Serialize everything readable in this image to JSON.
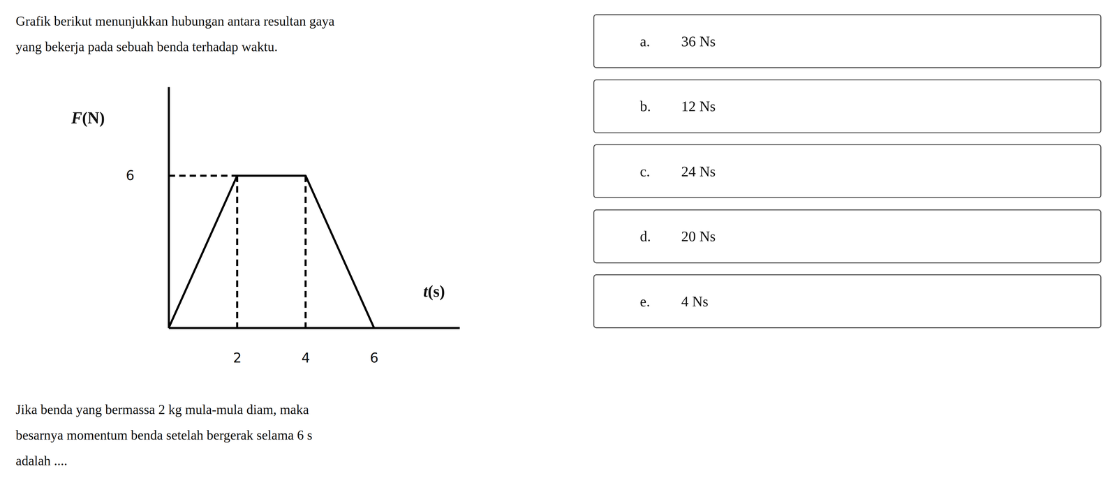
{
  "question": {
    "intro": [
      "Grafik berikut menunjukkan hubungan antara resultan gaya",
      "yang bekerja pada sebuah benda terhadap waktu."
    ],
    "prompt": [
      "Jika benda yang bermassa 2 kg mula-mula diam, maka",
      "besarnya momentum benda setelah bergerak selama 6 s",
      "adalah ...."
    ]
  },
  "options": [
    {
      "letter": "a.",
      "text": "36 Ns"
    },
    {
      "letter": "b.",
      "text": "12 Ns"
    },
    {
      "letter": "c.",
      "text": "24 Ns"
    },
    {
      "letter": "d.",
      "text": "20 Ns"
    },
    {
      "letter": "e.",
      "text": "4 Ns"
    }
  ],
  "chart_data": {
    "type": "line",
    "x_label": "t(s)",
    "y_label": "F(N)",
    "x": [
      0,
      2,
      4,
      6
    ],
    "values": [
      0,
      6,
      6,
      0
    ],
    "color": "#000000",
    "xlim": [
      0,
      8.5
    ],
    "ylim": [
      0,
      9.5
    ],
    "xticks": [
      2,
      4,
      6
    ],
    "yticks": [
      6
    ],
    "grid": false
  }
}
